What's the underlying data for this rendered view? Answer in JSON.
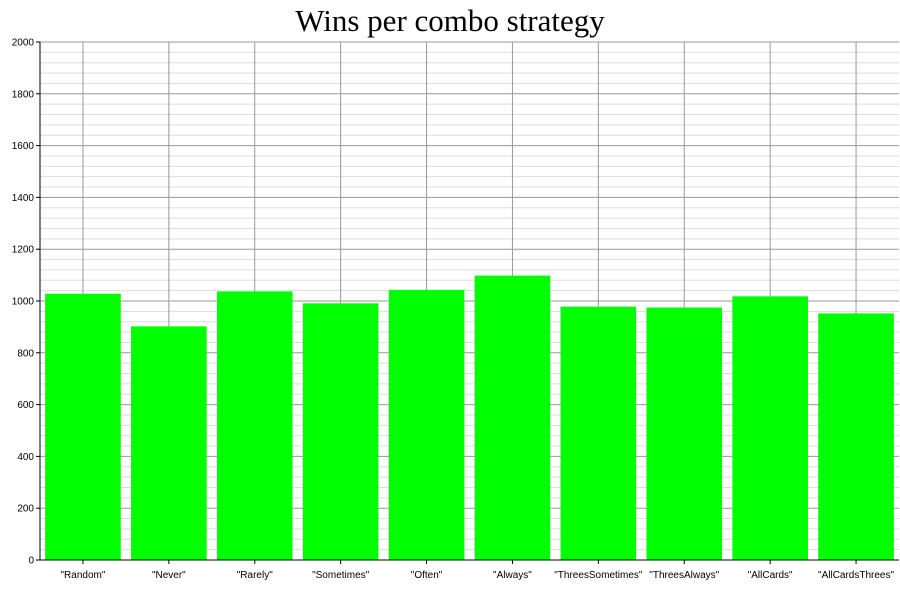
{
  "chart_data": {
    "type": "bar",
    "title": "Wins per combo strategy",
    "xlabel": "",
    "ylabel": "",
    "categories": [
      "\"Random\"",
      "\"Never\"",
      "\"Rarely\"",
      "\"Sometimes\"",
      "\"Often\"",
      "\"Always\"",
      "\"ThreesSometimes\"",
      "\"ThreesAlways\"",
      "\"AllCards\"",
      "\"AllCardsThrees\""
    ],
    "values": [
      1028,
      902,
      1037,
      991,
      1043,
      1098,
      978,
      975,
      1018,
      952
    ],
    "ylim": [
      0,
      2000
    ],
    "yticks": [
      0,
      200,
      400,
      600,
      800,
      1000,
      1200,
      1400,
      1600,
      1800,
      2000
    ],
    "bar_color": "#00ff00",
    "grid": true,
    "legend": "none"
  }
}
